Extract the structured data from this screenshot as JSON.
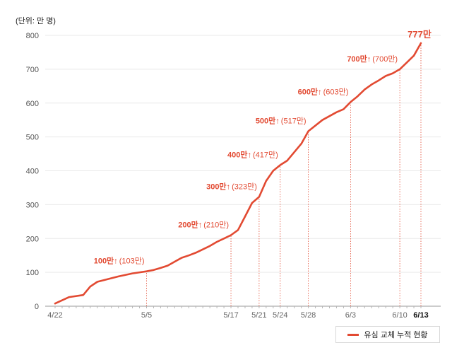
{
  "unit_label": "(단위: 만 명)",
  "legend": {
    "label": "유심 교체 누적 현황",
    "color": "#e24a32"
  },
  "chart_data": {
    "type": "line",
    "ylim": [
      0,
      800
    ],
    "y_ticks": [
      0,
      100,
      200,
      300,
      400,
      500,
      600,
      700,
      800
    ],
    "x_range_days": [
      0,
      52
    ],
    "grid": true,
    "legend_position": "bottom-right",
    "series": [
      {
        "name": "유심 교체 누적 현황",
        "color": "#e24a32",
        "points": [
          [
            "4/22",
            8
          ],
          [
            "4/24",
            27
          ],
          [
            "4/26",
            33
          ],
          [
            "4/27",
            58
          ],
          [
            "4/28",
            72
          ],
          [
            "5/1",
            88
          ],
          [
            "5/3",
            97
          ],
          [
            "5/5",
            103
          ],
          [
            "5/6",
            107
          ],
          [
            "5/7",
            113
          ],
          [
            "5/8",
            120
          ],
          [
            "5/10",
            143
          ],
          [
            "5/11",
            150
          ],
          [
            "5/12",
            158
          ],
          [
            "5/14",
            178
          ],
          [
            "5/15",
            190
          ],
          [
            "5/16",
            200
          ],
          [
            "5/17",
            210
          ],
          [
            "5/18",
            225
          ],
          [
            "5/19",
            265
          ],
          [
            "5/20",
            305
          ],
          [
            "5/21",
            323
          ],
          [
            "5/22",
            370
          ],
          [
            "5/23",
            400
          ],
          [
            "5/24",
            417
          ],
          [
            "5/25",
            430
          ],
          [
            "5/27",
            480
          ],
          [
            "5/28",
            517
          ],
          [
            "5/30",
            550
          ],
          [
            "6/1",
            573
          ],
          [
            "6/2",
            582
          ],
          [
            "6/3",
            603
          ],
          [
            "6/4",
            620
          ],
          [
            "6/5",
            640
          ],
          [
            "6/6",
            655
          ],
          [
            "6/7",
            667
          ],
          [
            "6/8",
            680
          ],
          [
            "6/9",
            688
          ],
          [
            "6/10",
            700
          ],
          [
            "6/11",
            720
          ],
          [
            "6/12",
            740
          ],
          [
            "6/13",
            777
          ]
        ]
      }
    ],
    "x_ticks": [
      {
        "label": "4/22",
        "day": 0,
        "bold": false
      },
      {
        "label": "5/5",
        "day": 13,
        "bold": false
      },
      {
        "label": "5/17",
        "day": 25,
        "bold": false
      },
      {
        "label": "5/21",
        "day": 29,
        "bold": false
      },
      {
        "label": "5/24",
        "day": 32,
        "bold": false
      },
      {
        "label": "5/28",
        "day": 36,
        "bold": false
      },
      {
        "label": "6/3",
        "day": 42,
        "bold": false
      },
      {
        "label": "6/10",
        "day": 49,
        "bold": false
      },
      {
        "label": "6/13",
        "day": 52,
        "bold": true
      }
    ],
    "annotations": [
      {
        "day": 13,
        "value": 103,
        "main": "100만↑",
        "sub": "(103만)"
      },
      {
        "day": 25,
        "value": 210,
        "main": "200만↑",
        "sub": "(210만)"
      },
      {
        "day": 29,
        "value": 323,
        "main": "300만↑",
        "sub": "(323만)"
      },
      {
        "day": 32,
        "value": 417,
        "main": "400만↑",
        "sub": "(417만)"
      },
      {
        "day": 36,
        "value": 517,
        "main": "500만↑",
        "sub": "(517만)"
      },
      {
        "day": 42,
        "value": 603,
        "main": "600만↑",
        "sub": "(603만)"
      },
      {
        "day": 49,
        "value": 700,
        "main": "700만↑",
        "sub": "(700만)"
      },
      {
        "day": 52,
        "value": 777,
        "main": "777만",
        "sub": ""
      }
    ]
  }
}
